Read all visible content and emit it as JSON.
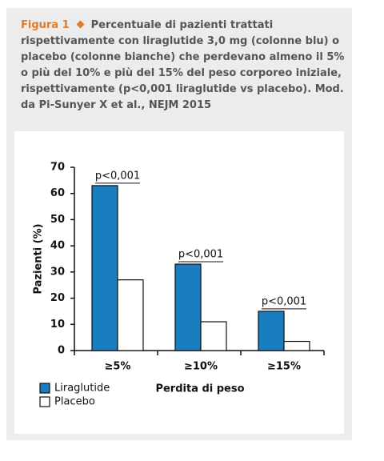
{
  "figure_label": "Figura 1",
  "caption": "Percentuale di pazienti trattati rispettivamente con liraglutide 3,0 mg (colonne blu) o placebo (colonne bianche) che perdevano almeno il 5% o più del 10% e più del 15% del peso corporeo iniziale, rispettivamente (p<0,001 liraglutide vs placebo). Mod. da Pi-Sunyer X et al., NEJM 2015",
  "chart_data": {
    "type": "bar",
    "categories": [
      "≥5%",
      "≥10%",
      "≥15%"
    ],
    "series": [
      {
        "name": "Liraglutide",
        "color": "#1a7dc0",
        "values": [
          63,
          33,
          15
        ]
      },
      {
        "name": "Placebo",
        "color": "#ffffff",
        "values": [
          27,
          11,
          3.5
        ]
      }
    ],
    "annotations": [
      "p<0,001",
      "p<0,001",
      "p<0,001"
    ],
    "ylabel": "Pazienti (%)",
    "xlabel": "Perdita di peso",
    "ylim": [
      0,
      70
    ],
    "yticks": [
      0,
      10,
      20,
      30,
      40,
      50,
      60,
      70
    ],
    "grid": false,
    "legend": "bottom-left"
  }
}
